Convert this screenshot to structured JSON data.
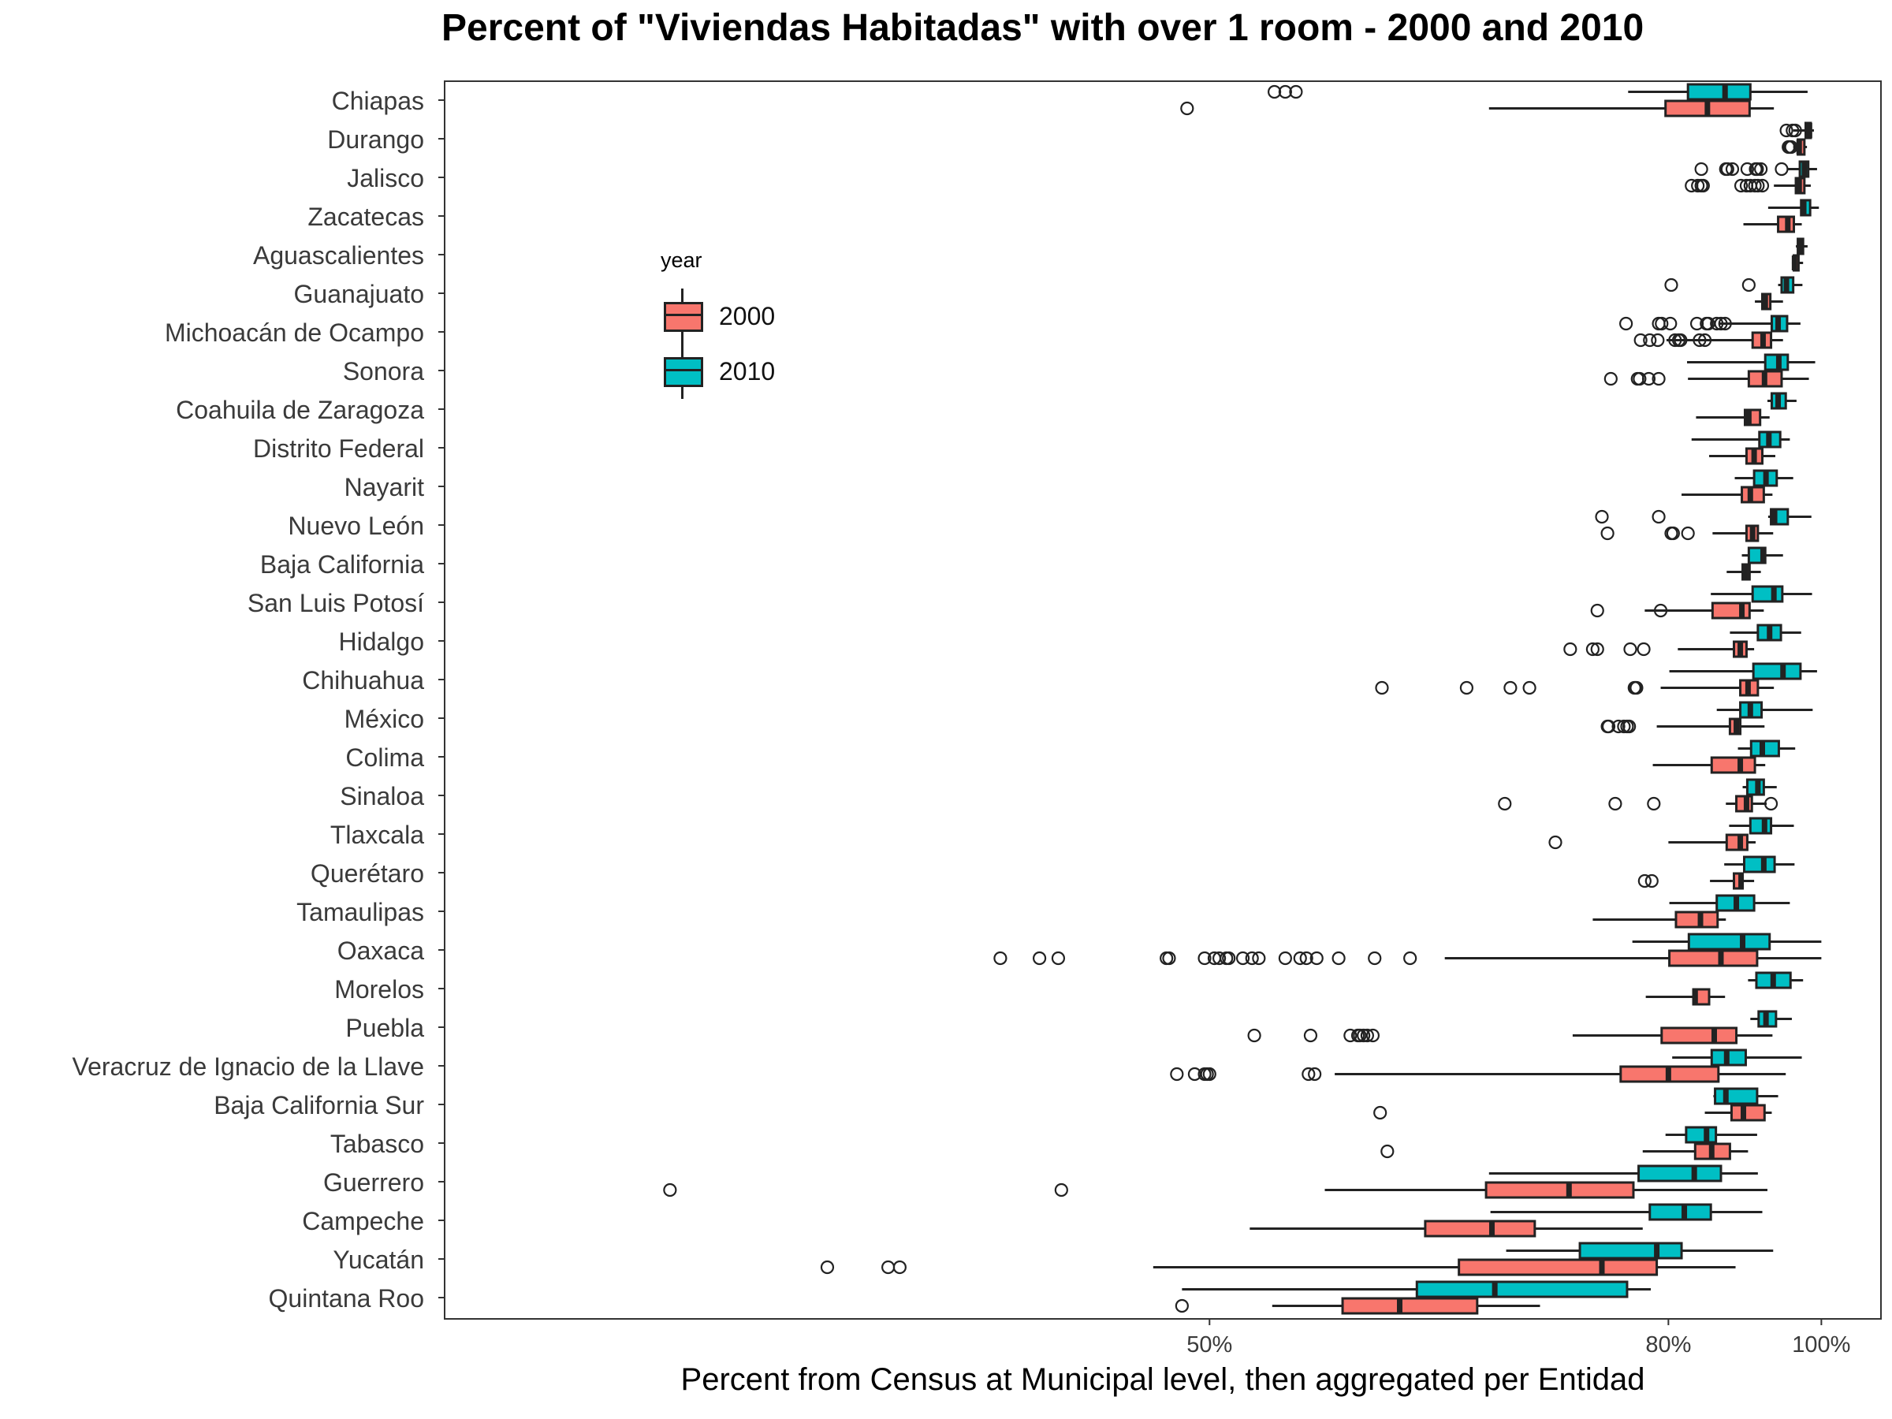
{
  "title": "Percent of \"Viviendas Habitadas\" with over 1 room - 2000 and 2010",
  "legend": {
    "title": "year",
    "items": [
      {
        "label": "2000",
        "color": "#F8766D"
      },
      {
        "label": "2010",
        "color": "#00BFC4"
      }
    ]
  },
  "chart_data": {
    "type": "boxplot",
    "orientation": "horizontal",
    "title": "Percent of \"Viviendas Habitadas\" with over 1 room - 2000 and 2010",
    "xlabel": "Percent from Census at Municipal level, then aggregated per Entidad",
    "ylabel": "",
    "x_scale": "reciprocal",
    "xlim": [
      25,
      100
    ],
    "x_ticks": [
      50,
      80,
      100
    ],
    "x_tick_labels": [
      "50%",
      "80%",
      "100%"
    ],
    "grid": false,
    "legend_position": "left-inside",
    "series": [
      {
        "name": "2000",
        "color": "#F8766D"
      },
      {
        "name": "2010",
        "color": "#00BFC4"
      }
    ],
    "categories": [
      "Chiapas",
      "Durango",
      "Jalisco",
      "Zacatecas",
      "Aguascalientes",
      "Guanajuato",
      "Michoacán de Ocampo",
      "Sonora",
      "Coahuila de Zaragoza",
      "Distrito Federal",
      "Nayarit",
      "Nuevo León",
      "Baja California",
      "San Luis Potosí",
      "Hidalgo",
      "Chihuahua",
      "México",
      "Colima",
      "Sinaloa",
      "Tlaxcala",
      "Querétaro",
      "Tamaulipas",
      "Oaxaca",
      "Morelos",
      "Puebla",
      "Veracruz de Ignacio de la Llave",
      "Baja California Sur",
      "Tabasco",
      "Guerrero",
      "Campeche",
      "Yucatán",
      "Quintana Roo"
    ],
    "boxes": {
      "2000": [
        {
          "min": 64.8,
          "q1": 79.7,
          "median": 84.3,
          "q3": 89.5,
          "max": 92.8,
          "outliers": [
            49.1
          ]
        },
        {
          "min": 95.6,
          "q1": 96.3,
          "median": 96.5,
          "q3": 97.3,
          "max": 97.7,
          "outliers": [
            94.9,
            95.1,
            95.3
          ]
        },
        {
          "min": 92.8,
          "q1": 96.0,
          "median": 96.5,
          "q3": 97.3,
          "max": 98.3,
          "outliers": [
            82.5,
            83.2,
            83.6,
            83.8,
            88.4,
            89.1,
            89.6,
            90.2,
            90.6,
            91.2
          ]
        },
        {
          "min": 88.7,
          "q1": 93.4,
          "median": 94.8,
          "q3": 95.7,
          "max": 96.9,
          "outliers": []
        },
        {
          "min": 95.4,
          "q1": 95.7,
          "median": 95.8,
          "q3": 96.4,
          "max": 97.1,
          "outliers": []
        },
        {
          "min": 90.2,
          "q1": 91.2,
          "median": 91.6,
          "q3": 92.3,
          "max": 94.1,
          "outliers": []
        },
        {
          "min": 79.8,
          "q1": 89.9,
          "median": 91.3,
          "q3": 92.4,
          "max": 94.1,
          "outliers": [
            77.2,
            78.1,
            78.9,
            80.7,
            81.1,
            81.3,
            83.4,
            84.0
          ]
        },
        {
          "min": 82.1,
          "q1": 89.4,
          "median": 91.5,
          "q3": 93.9,
          "max": 98.0,
          "outliers": [
            74.4,
            76.9,
            77.1,
            78.0,
            79.0
          ]
        },
        {
          "min": 83.0,
          "q1": 88.9,
          "median": 89.4,
          "q3": 90.9,
          "max": 92.2,
          "outliers": []
        },
        {
          "min": 84.5,
          "q1": 89.1,
          "median": 90.1,
          "q3": 91.2,
          "max": 93.0,
          "outliers": []
        },
        {
          "min": 81.4,
          "q1": 88.5,
          "median": 89.6,
          "q3": 91.4,
          "max": 92.6,
          "outliers": []
        },
        {
          "min": 84.9,
          "q1": 89.1,
          "median": 89.9,
          "q3": 90.6,
          "max": 92.7,
          "outliers": [
            74.1,
            80.3,
            80.5,
            82.1
          ]
        },
        {
          "min": 86.6,
          "q1": 88.6,
          "median": 89.0,
          "q3": 89.5,
          "max": 91.0,
          "outliers": []
        },
        {
          "min": 77.6,
          "q1": 84.9,
          "median": 88.5,
          "q3": 89.5,
          "max": 91.4,
          "outliers": [
            73.2,
            79.2
          ]
        },
        {
          "min": 81.0,
          "q1": 87.5,
          "median": 88.3,
          "q3": 89.1,
          "max": 90.1,
          "outliers": [
            70.9,
            72.8,
            73.2,
            76.2,
            77.5
          ]
        },
        {
          "min": 79.2,
          "q1": 88.3,
          "median": 89.3,
          "q3": 90.6,
          "max": 92.8,
          "outliers": [
            58.2,
            63.3,
            66.3,
            67.7,
            76.6,
            76.7,
            76.8
          ]
        },
        {
          "min": 78.8,
          "q1": 87.0,
          "median": 87.8,
          "q3": 88.3,
          "max": 91.5,
          "outliers": [
            74.1,
            74.2,
            75.1,
            75.6,
            75.9,
            76.1
          ]
        },
        {
          "min": 78.4,
          "q1": 84.8,
          "median": 88.3,
          "q3": 90.2,
          "max": 91.6,
          "outliers": []
        },
        {
          "min": 86.5,
          "q1": 87.8,
          "median": 89.1,
          "q3": 89.8,
          "max": 91.8,
          "outliers": [
            65.9,
            74.8,
            78.5,
            92.4
          ]
        },
        {
          "min": 80.0,
          "q1": 86.6,
          "median": 88.3,
          "q3": 89.2,
          "max": 90.3,
          "outliers": [
            69.7
          ]
        },
        {
          "min": 84.6,
          "q1": 87.5,
          "median": 88.4,
          "q3": 88.6,
          "max": 90.1,
          "outliers": [
            77.6,
            78.3
          ]
        },
        {
          "min": 72.8,
          "q1": 80.8,
          "median": 83.5,
          "q3": 85.5,
          "max": 86.5,
          "outliers": []
        },
        {
          "min": 61.9,
          "q1": 80.1,
          "median": 85.9,
          "q3": 90.5,
          "max": 100.0,
          "outliers": [
            42.7,
            43.9,
            44.5,
            48.3,
            48.4,
            49.8,
            50.2,
            50.4,
            50.7,
            50.8,
            51.4,
            51.8,
            52.1,
            53.3,
            54.0,
            54.3,
            54.8,
            55.9,
            57.8,
            59.8
          ]
        },
        {
          "min": 77.7,
          "q1": 82.7,
          "median": 82.9,
          "q3": 84.5,
          "max": 86.4,
          "outliers": []
        },
        {
          "min": 71.1,
          "q1": 79.3,
          "median": 85.1,
          "q3": 87.8,
          "max": 92.6,
          "outliers": [
            51.9,
            54.5,
            56.5,
            56.9,
            57.0,
            57.2,
            57.4,
            57.7
          ]
        },
        {
          "min": 55.7,
          "q1": 75.3,
          "median": 80.0,
          "q3": 85.6,
          "max": 94.5,
          "outliers": [
            48.7,
            49.4,
            49.8,
            49.9,
            50.0,
            54.4,
            54.7
          ]
        },
        {
          "min": 84.0,
          "q1": 87.2,
          "median": 88.7,
          "q3": 91.5,
          "max": 92.5,
          "outliers": [
            58.1
          ]
        },
        {
          "min": 77.4,
          "q1": 82.9,
          "median": 84.8,
          "q3": 87.0,
          "max": 89.3,
          "outliers": [
            58.5
          ]
        },
        {
          "min": 55.2,
          "q1": 64.6,
          "median": 70.8,
          "q3": 76.5,
          "max": 91.9,
          "outliers": [
            34.7,
            44.6
          ]
        },
        {
          "min": 51.7,
          "q1": 60.7,
          "median": 65.0,
          "q3": 68.1,
          "max": 77.4,
          "outliers": []
        },
        {
          "min": 47.8,
          "q1": 62.8,
          "median": 73.6,
          "q3": 78.8,
          "max": 87.7,
          "outliers": [
            38.1,
            39.6,
            39.9
          ]
        },
        {
          "min": 52.7,
          "q1": 56.1,
          "median": 59.2,
          "q3": 64.0,
          "max": 68.5,
          "outliers": [
            48.9
          ]
        }
      ],
      "2010": [
        {
          "min": 76.0,
          "q1": 82.1,
          "median": 86.4,
          "q3": 89.6,
          "max": 97.8,
          "outliers": [
            52.8,
            53.3,
            53.8
          ]
        },
        {
          "min": 95.6,
          "q1": 97.5,
          "median": 98.1,
          "q3": 98.3,
          "max": 98.8,
          "outliers": [
            94.6,
            95.5,
            95.9
          ]
        },
        {
          "min": 94.8,
          "q1": 96.6,
          "median": 97.3,
          "q3": 97.9,
          "max": 99.3,
          "outliers": [
            83.6,
            86.5,
            86.7,
            87.3,
            89.2,
            90.3,
            90.5,
            91.0,
            93.9
          ]
        },
        {
          "min": 92.0,
          "q1": 96.8,
          "median": 97.2,
          "q3": 98.2,
          "max": 99.6,
          "outliers": []
        },
        {
          "min": 96.0,
          "q1": 96.3,
          "median": 96.7,
          "q3": 97.1,
          "max": 97.8,
          "outliers": []
        },
        {
          "min": 93.4,
          "q1": 93.9,
          "median": 94.6,
          "q3": 95.6,
          "max": 97.0,
          "outliers": [
            80.3,
            89.4
          ]
        },
        {
          "min": 85.7,
          "q1": 92.5,
          "median": 93.4,
          "q3": 94.7,
          "max": 96.7,
          "outliers": [
            75.8,
            79.0,
            79.3,
            80.2,
            83.1,
            84.2,
            84.4,
            85.4,
            85.9,
            86.4
          ]
        },
        {
          "min": 82.0,
          "q1": 91.6,
          "median": 93.5,
          "q3": 94.8,
          "max": 99.0,
          "outliers": []
        },
        {
          "min": 91.9,
          "q1": 92.5,
          "median": 93.4,
          "q3": 94.5,
          "max": 96.1,
          "outliers": []
        },
        {
          "min": 82.5,
          "q1": 90.8,
          "median": 92.1,
          "q3": 93.7,
          "max": 95.1,
          "outliers": []
        },
        {
          "min": 87.6,
          "q1": 90.1,
          "median": 91.7,
          "q3": 93.2,
          "max": 95.6,
          "outliers": []
        },
        {
          "min": 92.0,
          "q1": 92.4,
          "median": 92.9,
          "q3": 94.8,
          "max": 98.4,
          "outliers": [
            73.6,
            79.0
          ]
        },
        {
          "min": 88.5,
          "q1": 89.4,
          "median": 91.3,
          "q3": 91.6,
          "max": 94.1,
          "outliers": []
        },
        {
          "min": 84.7,
          "q1": 89.9,
          "median": 92.8,
          "q3": 94.0,
          "max": 98.5,
          "outliers": []
        },
        {
          "min": 87.0,
          "q1": 90.6,
          "median": 92.2,
          "q3": 93.8,
          "max": 96.8,
          "outliers": []
        },
        {
          "min": 80.1,
          "q1": 90.0,
          "median": 94.1,
          "q3": 96.7,
          "max": 99.3,
          "outliers": []
        },
        {
          "min": 85.4,
          "q1": 88.3,
          "median": 89.6,
          "q3": 91.1,
          "max": 98.6,
          "outliers": []
        },
        {
          "min": 88.0,
          "q1": 89.7,
          "median": 91.2,
          "q3": 93.5,
          "max": 95.9,
          "outliers": []
        },
        {
          "min": 88.6,
          "q1": 89.2,
          "median": 90.6,
          "q3": 91.4,
          "max": 93.2,
          "outliers": []
        },
        {
          "min": 86.9,
          "q1": 89.6,
          "median": 91.5,
          "q3": 92.4,
          "max": 95.7,
          "outliers": []
        },
        {
          "min": 86.3,
          "q1": 88.8,
          "median": 91.4,
          "q3": 92.9,
          "max": 95.8,
          "outliers": []
        },
        {
          "min": 80.1,
          "q1": 85.4,
          "median": 87.8,
          "q3": 90.1,
          "max": 95.1,
          "outliers": []
        },
        {
          "min": 76.4,
          "q1": 82.2,
          "median": 88.6,
          "q3": 92.2,
          "max": 100.0,
          "outliers": []
        },
        {
          "min": 89.3,
          "q1": 90.4,
          "median": 92.7,
          "q3": 95.2,
          "max": 97.1,
          "outliers": []
        },
        {
          "min": 89.6,
          "q1": 90.7,
          "median": 91.7,
          "q3": 93.1,
          "max": 95.4,
          "outliers": []
        },
        {
          "min": 80.4,
          "q1": 84.8,
          "median": 86.6,
          "q3": 89.0,
          "max": 96.9,
          "outliers": []
        },
        {
          "min": 85.0,
          "q1": 85.2,
          "median": 86.5,
          "q3": 90.5,
          "max": 93.4,
          "outliers": []
        },
        {
          "min": 79.7,
          "q1": 81.9,
          "median": 84.2,
          "q3": 85.3,
          "max": 90.5,
          "outliers": []
        },
        {
          "min": 64.8,
          "q1": 77.0,
          "median": 82.8,
          "q3": 85.9,
          "max": 90.6,
          "outliers": []
        },
        {
          "min": 64.9,
          "q1": 78.1,
          "median": 81.7,
          "q3": 84.7,
          "max": 91.2,
          "outliers": []
        },
        {
          "min": 66.0,
          "q1": 71.7,
          "median": 78.8,
          "q3": 81.4,
          "max": 92.7,
          "outliers": []
        },
        {
          "min": 48.9,
          "q1": 60.2,
          "median": 65.2,
          "q3": 75.9,
          "max": 78.2,
          "outliers": []
        }
      ]
    }
  }
}
